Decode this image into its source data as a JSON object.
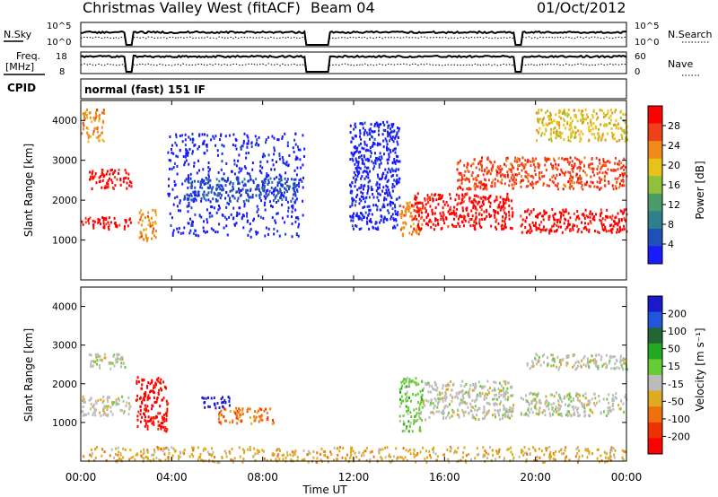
{
  "header": {
    "title": "Christmas Valley West (fitACF)",
    "beam": "Beam 04",
    "date": "01/Oct/2012"
  },
  "noise_panel": {
    "left_label": "N.Sky",
    "right_label": "N.Search",
    "left_ticks": [
      "10^5",
      "10^0"
    ],
    "right_ticks": [
      "10^5",
      "10^0"
    ]
  },
  "freq_panel": {
    "left_label_1": "Freq.",
    "left_label_2": "[MHz]",
    "right_label": "Nave",
    "left_ticks": [
      "18",
      "8"
    ],
    "right_ticks": [
      "60",
      "0"
    ]
  },
  "cpid": {
    "label": "CPID",
    "value": "normal (fast) 151 IF"
  },
  "axes": {
    "x_ticks": [
      "00:00",
      "04:00",
      "08:00",
      "12:00",
      "16:00",
      "20:00",
      "00:00"
    ],
    "xlabel": "Time UT",
    "ylabel": "Slant Range [km]",
    "y_ticks": [
      "1000",
      "2000",
      "3000",
      "4000"
    ]
  },
  "colors": {
    "power": [
      "#1a1aff",
      "#1f4fb8",
      "#2f7f8f",
      "#4a9a6a",
      "#8fc23a",
      "#e6c21a",
      "#f08a1a",
      "#f0401a",
      "#ff0000"
    ],
    "velocity": [
      "#1a1acc",
      "#2255dd",
      "#226633",
      "#22aa22",
      "#66cc33",
      "#bbbbbb",
      "#ddaa22",
      "#f07010",
      "#ee3300",
      "#ff0000"
    ]
  },
  "chart_data": [
    {
      "type": "heatmap",
      "title": "Power",
      "x_range_hours": [
        0,
        24
      ],
      "ylim": [
        0,
        4500
      ],
      "colorbar": {
        "label": "Power [dB]",
        "ticks": [
          "4",
          "8",
          "12",
          "16",
          "20",
          "24",
          "28"
        ]
      },
      "regions": [
        {
          "t": [
            0.0,
            2.2
          ],
          "r": [
            1300,
            1600
          ],
          "level": 8
        },
        {
          "t": [
            0.3,
            2.2
          ],
          "r": [
            2300,
            2800
          ],
          "level": 8
        },
        {
          "t": [
            0.0,
            1.0
          ],
          "r": [
            3500,
            4300
          ],
          "level": 6
        },
        {
          "t": [
            2.5,
            3.3
          ],
          "r": [
            1000,
            1800
          ],
          "level": 6
        },
        {
          "t": [
            3.8,
            9.8
          ],
          "r": [
            1100,
            3700
          ],
          "level": 0
        },
        {
          "t": [
            4.5,
            9.5
          ],
          "r": [
            2000,
            2600
          ],
          "level": 1
        },
        {
          "t": [
            11.8,
            14.0
          ],
          "r": [
            1300,
            4000
          ],
          "level": 0
        },
        {
          "t": [
            14.0,
            15.0
          ],
          "r": [
            1100,
            2000
          ],
          "level": 6
        },
        {
          "t": [
            14.5,
            19.0
          ],
          "r": [
            1300,
            2200
          ],
          "level": 8
        },
        {
          "t": [
            19.3,
            24.0
          ],
          "r": [
            1200,
            1800
          ],
          "level": 8
        },
        {
          "t": [
            16.5,
            24.0
          ],
          "r": [
            2300,
            3100
          ],
          "level": 7
        },
        {
          "t": [
            20.0,
            24.0
          ],
          "r": [
            3500,
            4300
          ],
          "level": 5
        }
      ]
    },
    {
      "type": "heatmap",
      "title": "Velocity",
      "x_range_hours": [
        0,
        24
      ],
      "ylim": [
        0,
        4500
      ],
      "colorbar": {
        "label": "Velocity [m s⁻¹]",
        "ticks": [
          "200",
          "100",
          "50",
          "15",
          "-15",
          "-50",
          "-100",
          "-200"
        ]
      },
      "regions": [
        {
          "t": [
            0.0,
            2.2
          ],
          "r": [
            1200,
            1700
          ],
          "level": 5
        },
        {
          "t": [
            0.3,
            2.0
          ],
          "r": [
            2400,
            2800
          ],
          "level": 5
        },
        {
          "t": [
            2.4,
            3.8
          ],
          "r": [
            800,
            2200
          ],
          "level": 9
        },
        {
          "t": [
            5.3,
            6.6
          ],
          "r": [
            1400,
            1700
          ],
          "level": 0
        },
        {
          "t": [
            6.0,
            8.5
          ],
          "r": [
            1000,
            1400
          ],
          "level": 7
        },
        {
          "t": [
            14.0,
            15.0
          ],
          "r": [
            800,
            2200
          ],
          "level": 4
        },
        {
          "t": [
            15.0,
            19.0
          ],
          "r": [
            1100,
            2100
          ],
          "level": 5
        },
        {
          "t": [
            19.3,
            24.0
          ],
          "r": [
            1200,
            1800
          ],
          "level": 5
        },
        {
          "t": [
            19.5,
            24.0
          ],
          "r": [
            2400,
            2800
          ],
          "level": 5
        },
        {
          "t": [
            0.0,
            24.0
          ],
          "r": [
            0,
            400
          ],
          "level": 6
        }
      ]
    }
  ]
}
